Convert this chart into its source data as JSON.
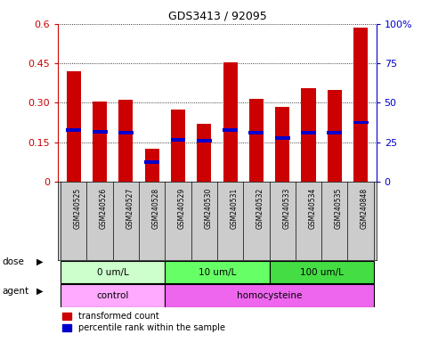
{
  "title": "GDS3413 / 92095",
  "samples": [
    "GSM240525",
    "GSM240526",
    "GSM240527",
    "GSM240528",
    "GSM240529",
    "GSM240530",
    "GSM240531",
    "GSM240532",
    "GSM240533",
    "GSM240534",
    "GSM240535",
    "GSM240848"
  ],
  "red_values": [
    0.42,
    0.305,
    0.31,
    0.125,
    0.275,
    0.22,
    0.455,
    0.315,
    0.285,
    0.355,
    0.35,
    0.585
  ],
  "blue_values": [
    0.195,
    0.19,
    0.185,
    0.075,
    0.16,
    0.155,
    0.195,
    0.185,
    0.165,
    0.185,
    0.185,
    0.225
  ],
  "ylim_left": [
    0,
    0.6
  ],
  "ylim_right": [
    0,
    100
  ],
  "yticks_left": [
    0,
    0.15,
    0.3,
    0.45,
    0.6
  ],
  "yticks_right": [
    0,
    25,
    50,
    75,
    100
  ],
  "ytick_labels_left": [
    "0",
    "0.15",
    "0.30",
    "0.45",
    "0.6"
  ],
  "ytick_labels_right": [
    "0",
    "25",
    "50",
    "75",
    "100%"
  ],
  "dose_groups": [
    {
      "label": "0 um/L",
      "start": 0,
      "end": 4,
      "color": "#ccffcc"
    },
    {
      "label": "10 um/L",
      "start": 4,
      "end": 8,
      "color": "#66ff66"
    },
    {
      "label": "100 um/L",
      "start": 8,
      "end": 12,
      "color": "#44dd44"
    }
  ],
  "agent_groups": [
    {
      "label": "control",
      "start": 0,
      "end": 4,
      "color": "#ffaaff"
    },
    {
      "label": "homocysteine",
      "start": 4,
      "end": 12,
      "color": "#ee66ee"
    }
  ],
  "bar_color": "#cc0000",
  "blue_color": "#0000cc",
  "grid_color": "#000000",
  "bg_color": "#ffffff",
  "plot_bg": "#ffffff",
  "xlabel_bg": "#cccccc",
  "left_axis_color": "#cc0000",
  "right_axis_color": "#0000cc",
  "legend_red_label": "transformed count",
  "legend_blue_label": "percentile rank within the sample",
  "bar_width": 0.55
}
